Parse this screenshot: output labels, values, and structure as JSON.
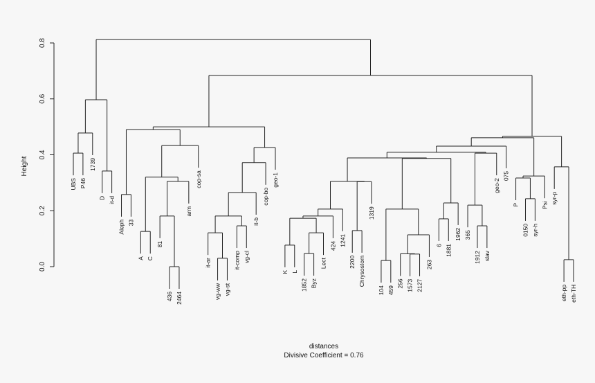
{
  "chart_data": {
    "type": "dendrogram",
    "ylabel": "Height",
    "xlabel": "distances",
    "sublabel": "Divisive Coefficient =  0.76",
    "ylim": [
      0,
      0.8
    ],
    "yticks": [
      "0.0",
      "0.2",
      "0.4",
      "0.6",
      "0.8"
    ],
    "tree": {
      "height": 0.812,
      "children": [
        {
          "height": 0.597,
          "children": [
            {
              "height": 0.478,
              "children": [
                {
                  "height": 0.406,
                  "children": [
                    "UBS",
                    "P46"
                  ]
                },
                "1739"
              ]
            },
            {
              "height": 0.342,
              "children": [
                "D",
                "it-d"
              ]
            }
          ]
        },
        {
          "height": 0.684,
          "children": [
            {
              "height": 0.5,
              "children": [
                {
                  "height": 0.49,
                  "children": [
                    {
                      "height": 0.258,
                      "children": [
                        "Aleph",
                        "33"
                      ]
                    },
                    {
                      "height": 0.433,
                      "children": [
                        {
                          "height": 0.32,
                          "children": [
                            {
                              "height": 0.126,
                              "children": [
                                "A",
                                "C"
                              ]
                            },
                            {
                              "height": 0.305,
                              "children": [
                                {
                                  "height": 0.181,
                                  "children": [
                                    "81",
                                    {
                                      "height": 0.0,
                                      "children": [
                                        "436",
                                        "2464"
                                      ]
                                    }
                                  ]
                                },
                                "arm"
                              ]
                            }
                          ]
                        },
                        "cop-sa"
                      ]
                    }
                  ]
                },
                {
                  "height": 0.426,
                  "children": [
                    {
                      "height": 0.372,
                      "children": [
                        {
                          "height": 0.265,
                          "children": [
                            {
                              "height": 0.181,
                              "children": [
                                {
                                  "height": 0.121,
                                  "children": [
                                    "it-ar",
                                    {
                                      "height": 0.03,
                                      "children": [
                                        "vg-ww",
                                        "vg-st"
                                      ]
                                    }
                                  ]
                                },
                                {
                                  "height": 0.146,
                                  "children": [
                                    "it-comp",
                                    "vg-cl"
                                  ]
                                }
                              ]
                            },
                            "it-b"
                          ]
                        },
                        "cop-bo"
                      ]
                    },
                    "geo-1"
                  ]
                }
              ]
            },
            {
              "height": 0.466,
              "children": [
                {
                  "height": 0.461,
                  "children": [
                    {
                      "height": 0.431,
                      "children": [
                        {
                          "height": 0.409,
                          "children": [
                            {
                              "height": 0.389,
                              "children": [
                                {
                                  "height": 0.305,
                                  "children": [
                                    {
                                      "height": 0.206,
                                      "children": [
                                        {
                                          "height": 0.181,
                                          "children": [
                                            {
                                              "height": 0.173,
                                              "children": [
                                                {
                                                  "height": 0.077,
                                                  "children": [
                                                    "K",
                                                    "L"
                                                  ]
                                                },
                                                {
                                                  "height": 0.121,
                                                  "children": [
                                                    {
                                                      "height": 0.047,
                                                      "children": [
                                                        "1852",
                                                        "Byz"
                                                      ]
                                                    },
                                                    "Lect"
                                                  ]
                                                }
                                              ]
                                            },
                                            "424"
                                          ]
                                        },
                                        "1241"
                                      ]
                                    },
                                    {
                                      "height": 0.304,
                                      "children": [
                                        {
                                          "height": 0.129,
                                          "children": [
                                            "2200",
                                            "Chrysostom"
                                          ]
                                        },
                                        "1319"
                                      ]
                                    }
                                  ]
                                },
                                {
                                  "height": 0.387,
                                  "children": [
                                    {
                                      "height": 0.206,
                                      "children": [
                                        {
                                          "height": 0.022,
                                          "children": [
                                            "104",
                                            "459"
                                          ]
                                        },
                                        {
                                          "height": 0.114,
                                          "children": [
                                            {
                                              "height": 0.046,
                                              "children": [
                                                "256",
                                                {
                                                  "height": 0.045,
                                                  "children": [
                                                    "1573",
                                                    "2127"
                                                  ]
                                                }
                                              ]
                                            },
                                            "263"
                                          ]
                                        }
                                      ]
                                    },
                                    {
                                      "height": 0.228,
                                      "children": [
                                        {
                                          "height": 0.171,
                                          "children": [
                                            "6",
                                            "1881"
                                          ]
                                        },
                                        "1962"
                                      ]
                                    }
                                  ]
                                }
                              ]
                            },
                            {
                              "height": 0.406,
                              "children": [
                                {
                                  "height": 0.22,
                                  "children": [
                                    "365",
                                    {
                                      "height": 0.146,
                                      "children": [
                                        "1912",
                                        "slav"
                                      ]
                                    }
                                  ]
                                },
                                "geo-2"
                              ]
                            }
                          ]
                        },
                        "075"
                      ]
                    },
                    {
                      "height": 0.324,
                      "children": [
                        {
                          "height": 0.317,
                          "children": [
                            "P",
                            {
                              "height": 0.243,
                              "children": [
                                "0150",
                                "syr-h"
                              ]
                            }
                          ]
                        },
                        "Psi"
                      ]
                    }
                  ]
                },
                {
                  "height": 0.357,
                  "children": [
                    "syr-p",
                    {
                      "height": 0.025,
                      "children": [
                        "eth-pp",
                        "eth-TH"
                      ]
                    }
                  ]
                }
              ]
            }
          ]
        }
      ]
    }
  }
}
